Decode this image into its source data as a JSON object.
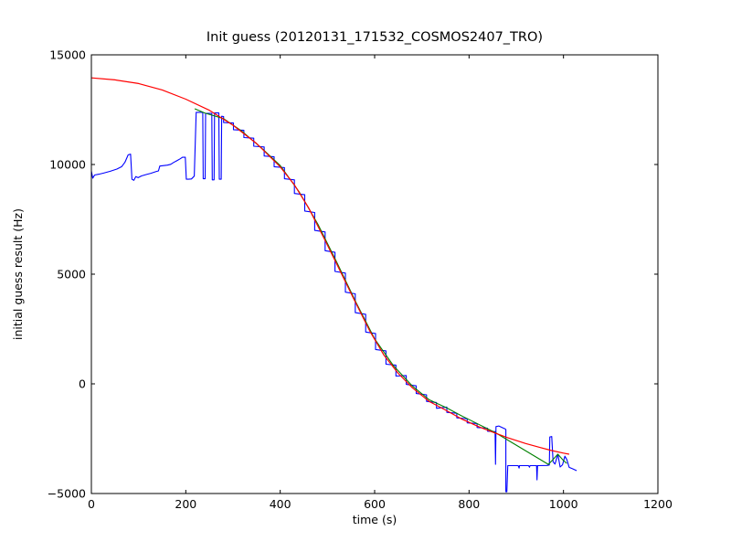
{
  "figure": {
    "background": "#ffffff",
    "frame_color": "#000000"
  },
  "chart_data": {
    "type": "line",
    "title": "Init guess (20120131_171532_COSMOS2407_TRO)",
    "xlabel": "time (s)",
    "ylabel": "initial guess result (Hz)",
    "xlim": [
      0,
      1200
    ],
    "ylim": [
      -5000,
      15000
    ],
    "grid": false,
    "legend": "none",
    "tick_style": "inward-all-sides",
    "xticks": {
      "values": [
        0,
        200,
        400,
        600,
        800,
        1000,
        1200
      ],
      "labels": [
        "0",
        "200",
        "400",
        "600",
        "800",
        "1000",
        "1200"
      ]
    },
    "yticks": {
      "values": [
        -5000,
        0,
        5000,
        10000,
        15000
      ],
      "labels": [
        "−5000",
        "0",
        "5000",
        "10000",
        "15000"
      ]
    },
    "series": [
      {
        "name": "initial-guess-data",
        "color": "#0000ff",
        "width": 1.1,
        "points": [
          [
            0,
            9700
          ],
          [
            3,
            9380
          ],
          [
            7,
            9520
          ],
          [
            16,
            9560
          ],
          [
            26,
            9610
          ],
          [
            40,
            9690
          ],
          [
            54,
            9790
          ],
          [
            64,
            9900
          ],
          [
            71,
            10100
          ],
          [
            78,
            10440
          ],
          [
            83,
            10470
          ],
          [
            86,
            9330
          ],
          [
            90,
            9280
          ],
          [
            94,
            9450
          ],
          [
            99,
            9400
          ],
          [
            106,
            9480
          ],
          [
            116,
            9540
          ],
          [
            126,
            9600
          ],
          [
            136,
            9670
          ],
          [
            142,
            9710
          ],
          [
            145,
            9930
          ],
          [
            153,
            9950
          ],
          [
            161,
            9970
          ],
          [
            168,
            10010
          ],
          [
            174,
            10090
          ],
          [
            181,
            10170
          ],
          [
            188,
            10260
          ],
          [
            193,
            10330
          ],
          [
            199,
            10330
          ],
          [
            201,
            9330
          ],
          [
            206,
            9330
          ],
          [
            212,
            9340
          ],
          [
            218,
            9470
          ],
          [
            222,
            12380
          ],
          [
            236,
            12380
          ],
          [
            237,
            9350
          ],
          [
            241,
            9350
          ],
          [
            242,
            12330
          ],
          [
            255,
            12330
          ],
          [
            256,
            9300
          ],
          [
            260,
            9300
          ],
          [
            261,
            12350
          ],
          [
            270,
            12350
          ],
          [
            271,
            9330
          ],
          [
            275,
            9330
          ],
          [
            276,
            12200
          ],
          [
            280,
            12187
          ],
          [
            280,
            11913
          ],
          [
            301,
            11890
          ],
          [
            301,
            11586
          ],
          [
            323,
            11558
          ],
          [
            323,
            11229
          ],
          [
            344,
            11201
          ],
          [
            344,
            10834
          ],
          [
            366,
            10800
          ],
          [
            366,
            10388
          ],
          [
            387,
            10351
          ],
          [
            387,
            9901
          ],
          [
            409,
            9860
          ],
          [
            409,
            9348
          ],
          [
            430,
            9301
          ],
          [
            430,
            8680
          ],
          [
            452,
            8620
          ],
          [
            452,
            7881
          ],
          [
            473,
            7813
          ],
          [
            473,
            6997
          ],
          [
            495,
            6924
          ],
          [
            495,
            6070
          ],
          [
            516,
            5996
          ],
          [
            516,
            5127
          ],
          [
            538,
            5052
          ],
          [
            538,
            4180
          ],
          [
            559,
            4104
          ],
          [
            559,
            3246
          ],
          [
            581,
            3172
          ],
          [
            581,
            2363
          ],
          [
            602,
            2295
          ],
          [
            602,
            1566
          ],
          [
            624,
            1506
          ],
          [
            624,
            897
          ],
          [
            645,
            851
          ],
          [
            645,
            355
          ],
          [
            667,
            380
          ],
          [
            667,
            -24
          ],
          [
            688,
            -90
          ],
          [
            688,
            -442
          ],
          [
            710,
            -498
          ],
          [
            710,
            -802
          ],
          [
            731,
            -851
          ],
          [
            731,
            -1118
          ],
          [
            753,
            -1060
          ],
          [
            753,
            -1300
          ],
          [
            774,
            -1340
          ],
          [
            774,
            -1550
          ],
          [
            796,
            -1590
          ],
          [
            796,
            -1780
          ],
          [
            817,
            -1810
          ],
          [
            817,
            -1990
          ],
          [
            839,
            -2020
          ],
          [
            839,
            -2160
          ],
          [
            855,
            -2180
          ],
          [
            856,
            -3670
          ],
          [
            857,
            -1950
          ],
          [
            863,
            -1920
          ],
          [
            876,
            -2050
          ],
          [
            878,
            -2080
          ],
          [
            878,
            -4920
          ],
          [
            880,
            -4920
          ],
          [
            882,
            -3730
          ],
          [
            904,
            -3730
          ],
          [
            906,
            -3840
          ],
          [
            907,
            -3730
          ],
          [
            926,
            -3730
          ],
          [
            928,
            -3800
          ],
          [
            929,
            -3730
          ],
          [
            943,
            -3730
          ],
          [
            944,
            -4380
          ],
          [
            945,
            -3730
          ],
          [
            965,
            -3720
          ],
          [
            970,
            -3700
          ],
          [
            971,
            -2420
          ],
          [
            975,
            -2400
          ],
          [
            978,
            -3560
          ],
          [
            982,
            -3660
          ],
          [
            988,
            -3210
          ],
          [
            993,
            -3790
          ],
          [
            998,
            -3690
          ],
          [
            1003,
            -3300
          ],
          [
            1007,
            -3450
          ],
          [
            1012,
            -3810
          ],
          [
            1019,
            -3870
          ],
          [
            1028,
            -3960
          ]
        ]
      },
      {
        "name": "guess-connecting-line",
        "color": "#008000",
        "width": 1.1,
        "points": [
          [
            219,
            12540
          ],
          [
            240,
            12350
          ],
          [
            280,
            12090
          ],
          [
            320,
            11500
          ],
          [
            360,
            10760
          ],
          [
            400,
            9950
          ],
          [
            440,
            8760
          ],
          [
            480,
            7270
          ],
          [
            520,
            5530
          ],
          [
            560,
            3740
          ],
          [
            600,
            2050
          ],
          [
            640,
            820
          ],
          [
            680,
            -100
          ],
          [
            716,
            -730
          ],
          [
            753,
            -1100
          ],
          [
            784,
            -1460
          ],
          [
            856,
            -2230
          ],
          [
            968,
            -3670
          ],
          [
            977,
            -3470
          ],
          [
            988,
            -3210
          ],
          [
            998,
            -3450
          ],
          [
            1007,
            -3630
          ]
        ]
      },
      {
        "name": "model-fit-curve",
        "color": "#ff0000",
        "width": 1.2,
        "points": [
          [
            0,
            13950
          ],
          [
            50,
            13860
          ],
          [
            100,
            13690
          ],
          [
            150,
            13400
          ],
          [
            200,
            12980
          ],
          [
            250,
            12470
          ],
          [
            300,
            11790
          ],
          [
            350,
            10960
          ],
          [
            400,
            9890
          ],
          [
            430,
            9070
          ],
          [
            460,
            8030
          ],
          [
            492,
            6670
          ],
          [
            520,
            5450
          ],
          [
            555,
            3900
          ],
          [
            590,
            2400
          ],
          [
            620,
            1300
          ],
          [
            650,
            480
          ],
          [
            680,
            -180
          ],
          [
            716,
            -810
          ],
          [
            750,
            -1190
          ],
          [
            784,
            -1600
          ],
          [
            820,
            -1950
          ],
          [
            850,
            -2200
          ],
          [
            881,
            -2450
          ],
          [
            920,
            -2720
          ],
          [
            950,
            -2900
          ],
          [
            975,
            -3040
          ],
          [
            1000,
            -3160
          ],
          [
            1012,
            -3210
          ]
        ]
      }
    ]
  }
}
